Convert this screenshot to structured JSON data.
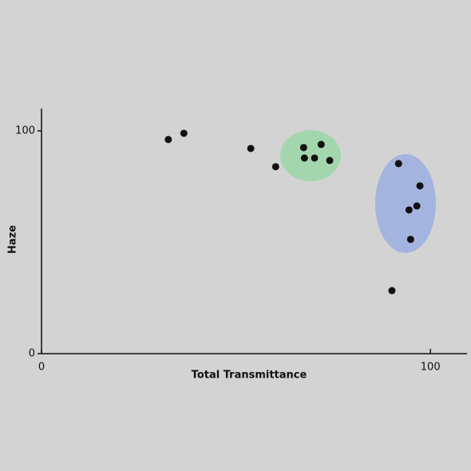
{
  "chart_data": {
    "type": "scatter",
    "x_label": "Total Transmittance",
    "y_label": "Haze",
    "x": [
      32.6,
      36.6,
      53.8,
      60.2,
      67.4,
      71.9,
      67.6,
      70.2,
      74.1,
      91.8,
      97.3,
      96.5,
      94.5,
      94.9,
      90.1
    ],
    "values": [
      96.1,
      98.9,
      92.1,
      83.9,
      92.5,
      93.9,
      87.8,
      87.8,
      86.7,
      85.3,
      75.3,
      66.3,
      64.5,
      51.3,
      28.3
    ],
    "color": "#111111",
    "xlim": [
      0,
      109.4
    ],
    "ylim": [
      0,
      110
    ],
    "xticks": [
      0,
      100
    ],
    "yticks": [
      0,
      100
    ]
  }
}
